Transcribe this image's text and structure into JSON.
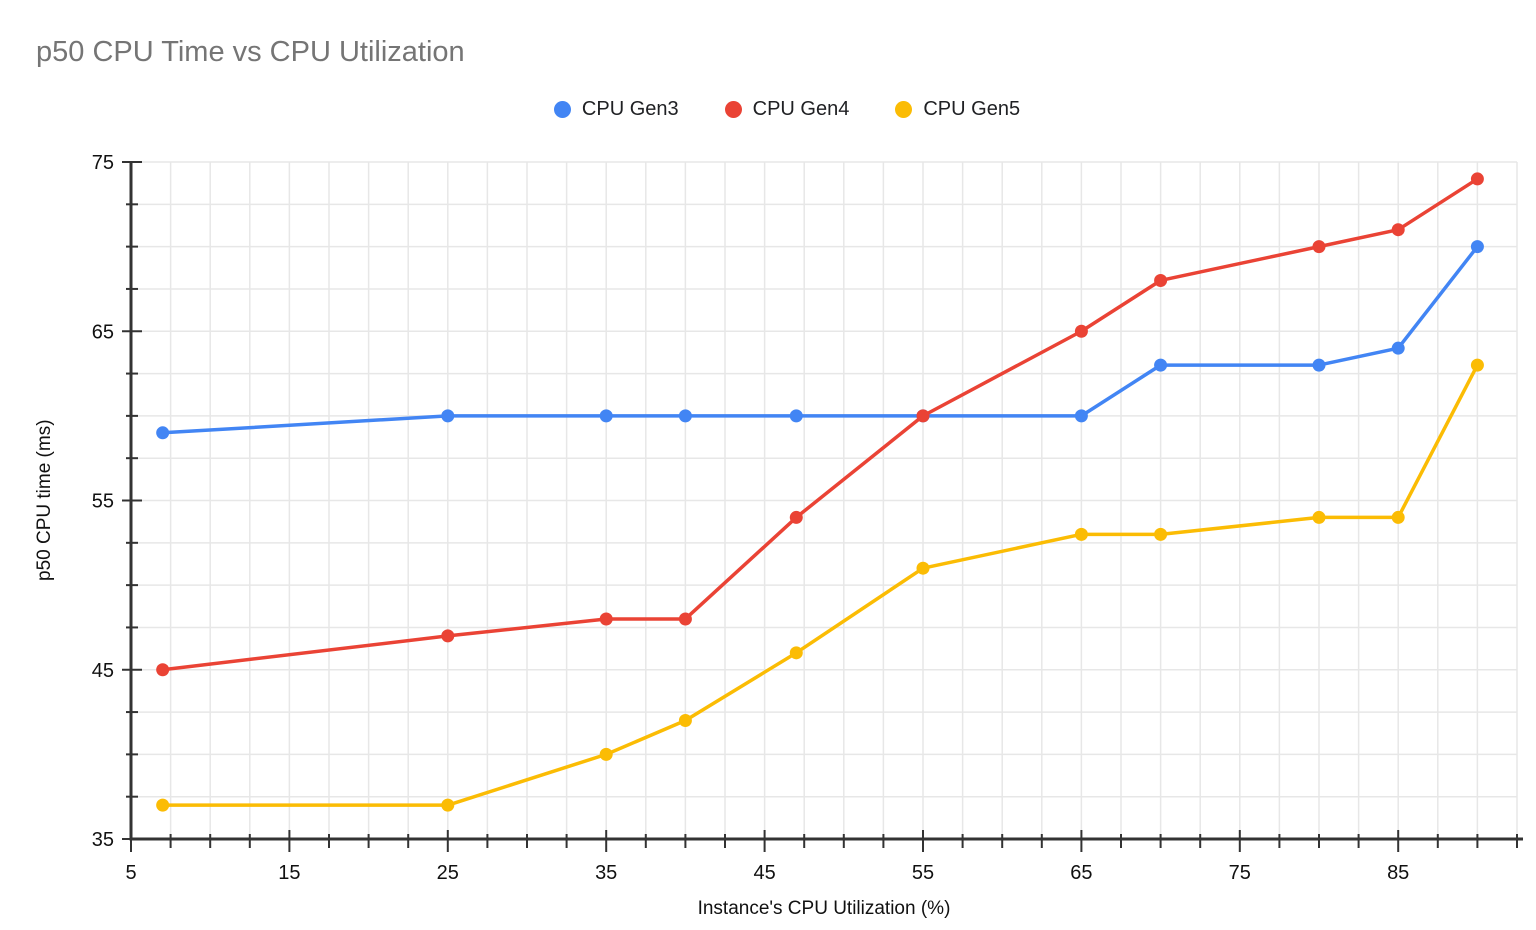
{
  "chart_data": {
    "type": "line",
    "title": "p50 CPU Time vs CPU Utilization",
    "xlabel": "Instance's CPU Utilization (%)",
    "ylabel": "p50 CPU time (ms)",
    "x": [
      7,
      25,
      35,
      40,
      47,
      55,
      65,
      70,
      80,
      85,
      90
    ],
    "series": [
      {
        "name": "CPU Gen3",
        "color": "#4285F4",
        "values": [
          59,
          60,
          60,
          60,
          60,
          60,
          60,
          63,
          63,
          64,
          70
        ]
      },
      {
        "name": "CPU Gen4",
        "color": "#EA4335",
        "values": [
          45,
          47,
          48,
          48,
          54,
          60,
          65,
          68,
          70,
          71,
          74
        ]
      },
      {
        "name": "CPU Gen5",
        "color": "#FBBC04",
        "values": [
          37,
          37,
          40,
          42,
          46,
          51,
          53,
          53,
          54,
          54,
          63
        ]
      }
    ],
    "xlim": [
      5,
      92.5
    ],
    "ylim": [
      35,
      75
    ],
    "x_major_ticks": [
      5,
      15,
      25,
      35,
      45,
      55,
      65,
      75,
      85
    ],
    "y_major_ticks": [
      35,
      45,
      55,
      65,
      75
    ],
    "minor_tick_step": 2.5,
    "grid": true,
    "legend_position": "top-center",
    "colors": {
      "title": "#757575",
      "axis": "#333333",
      "grid": "#e7e7e7",
      "tick_label": "#111111",
      "background": "#ffffff"
    }
  }
}
